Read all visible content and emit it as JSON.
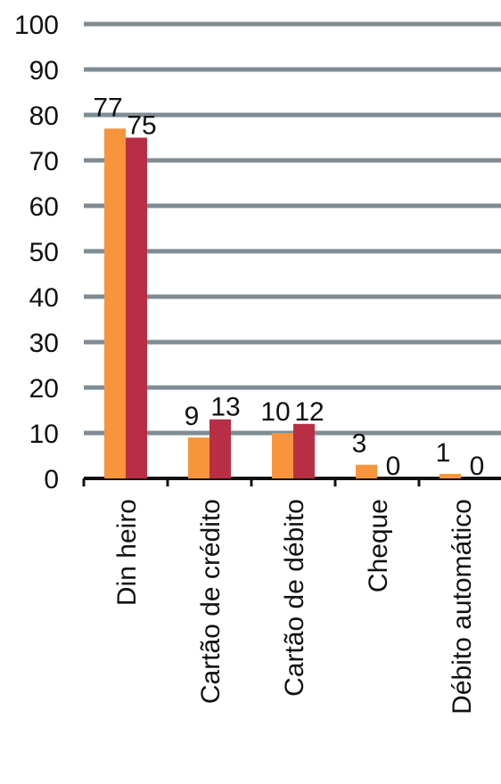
{
  "chart_data": {
    "type": "bar",
    "categories": [
      "Din heiro",
      "Cartão de crédito",
      "Cartão de débito",
      "Cheque",
      "Débito automático"
    ],
    "series": [
      {
        "values": [
          77,
          9,
          10,
          3,
          1
        ],
        "color": "#F7943C"
      },
      {
        "values": [
          75,
          13,
          12,
          0,
          0
        ],
        "color": "#B82F45"
      }
    ],
    "yticks": [
      0,
      10,
      20,
      30,
      40,
      50,
      60,
      70,
      80,
      90,
      100
    ],
    "ylim": [
      0,
      100
    ],
    "grid": true,
    "gridColor": "#7F8C94",
    "axisColor": "#111111",
    "title": "",
    "xlabel": "",
    "ylabel": ""
  }
}
